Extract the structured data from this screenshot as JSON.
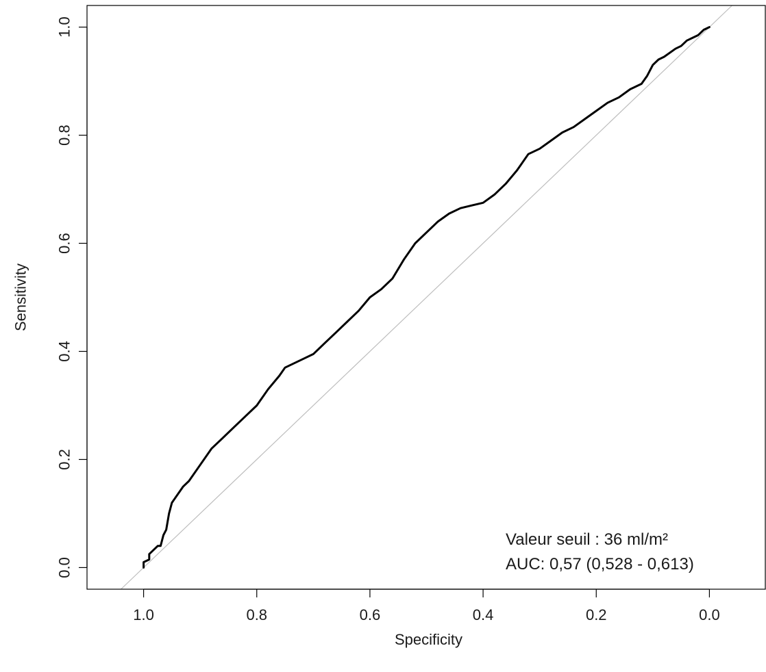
{
  "chart_data": {
    "type": "line",
    "title": "",
    "xlabel": "Specificity",
    "ylabel": "Sensitivity",
    "x_reversed": true,
    "xlim": [
      1.1,
      -0.1
    ],
    "ylim": [
      -0.04,
      1.04
    ],
    "x_ticks": [
      {
        "value": 1.0,
        "label": "1.0"
      },
      {
        "value": 0.8,
        "label": "0.8"
      },
      {
        "value": 0.6,
        "label": "0.6"
      },
      {
        "value": 0.4,
        "label": "0.4"
      },
      {
        "value": 0.2,
        "label": "0.2"
      },
      {
        "value": 0.0,
        "label": "0.0"
      }
    ],
    "y_ticks": [
      {
        "value": 0.0,
        "label": "0.0"
      },
      {
        "value": 0.2,
        "label": "0.2"
      },
      {
        "value": 0.4,
        "label": "0.4"
      },
      {
        "value": 0.6,
        "label": "0.6"
      },
      {
        "value": 0.8,
        "label": "0.8"
      },
      {
        "value": 1.0,
        "label": "1.0"
      }
    ],
    "grid": false,
    "legend": "none",
    "reference_line": {
      "color": "#bdbdbd"
    },
    "series": [
      {
        "color": "#000000",
        "x": [
          1.0,
          1.0,
          0.99,
          0.99,
          0.985,
          0.975,
          0.97,
          0.965,
          0.96,
          0.955,
          0.95,
          0.93,
          0.92,
          0.9,
          0.88,
          0.86,
          0.84,
          0.82,
          0.8,
          0.78,
          0.76,
          0.75,
          0.72,
          0.7,
          0.68,
          0.66,
          0.64,
          0.62,
          0.6,
          0.58,
          0.56,
          0.54,
          0.52,
          0.5,
          0.48,
          0.46,
          0.44,
          0.42,
          0.4,
          0.38,
          0.36,
          0.34,
          0.32,
          0.3,
          0.28,
          0.26,
          0.24,
          0.22,
          0.2,
          0.18,
          0.16,
          0.14,
          0.12,
          0.11,
          0.1,
          0.09,
          0.08,
          0.06,
          0.05,
          0.04,
          0.03,
          0.02,
          0.01,
          0.0
        ],
        "y": [
          0.0,
          0.01,
          0.015,
          0.025,
          0.03,
          0.04,
          0.04,
          0.06,
          0.07,
          0.1,
          0.12,
          0.15,
          0.16,
          0.19,
          0.22,
          0.24,
          0.26,
          0.28,
          0.3,
          0.33,
          0.355,
          0.37,
          0.385,
          0.395,
          0.415,
          0.435,
          0.455,
          0.475,
          0.5,
          0.515,
          0.535,
          0.57,
          0.6,
          0.62,
          0.64,
          0.655,
          0.665,
          0.67,
          0.675,
          0.69,
          0.71,
          0.735,
          0.765,
          0.775,
          0.79,
          0.805,
          0.815,
          0.83,
          0.845,
          0.86,
          0.87,
          0.885,
          0.895,
          0.91,
          0.93,
          0.94,
          0.945,
          0.96,
          0.965,
          0.975,
          0.98,
          0.985,
          0.995,
          1.0
        ]
      }
    ],
    "annotations": [
      {
        "text": "Valeur seuil : 36 ml/m²"
      },
      {
        "text": "AUC: 0,57 (0,528 - 0,613)"
      }
    ]
  }
}
